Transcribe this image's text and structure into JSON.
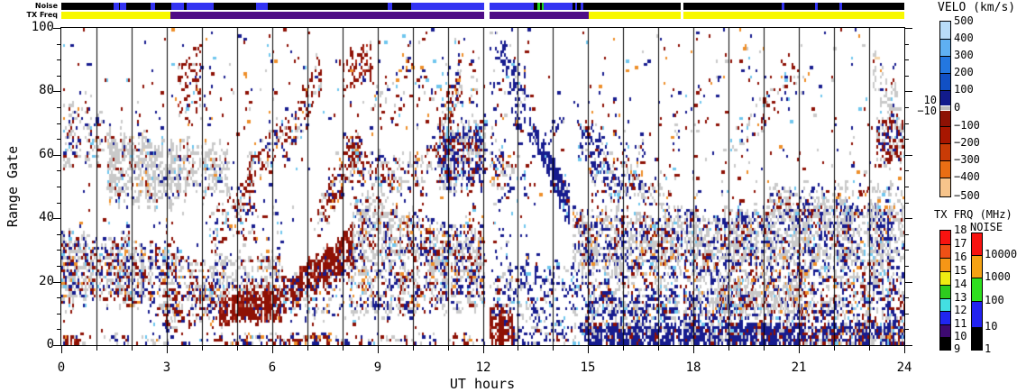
{
  "strips": {
    "noise_label": "Noise",
    "tx_label": "TX Freq",
    "colors": {
      "black": "#000000",
      "blue": "#3333f2",
      "green": "#1ed31e",
      "yellow": "#f8f800",
      "purple": "#4f0d86"
    },
    "noise_segments": [
      [
        0,
        1.5,
        "black"
      ],
      [
        1.5,
        1.63,
        "blue"
      ],
      [
        1.63,
        1.68,
        "black"
      ],
      [
        1.68,
        1.86,
        "blue"
      ],
      [
        1.86,
        2.55,
        "black"
      ],
      [
        2.55,
        2.66,
        "blue"
      ],
      [
        2.66,
        3.12,
        "black"
      ],
      [
        3.12,
        3.5,
        "blue"
      ],
      [
        3.5,
        3.58,
        "black"
      ],
      [
        3.58,
        4.33,
        "blue"
      ],
      [
        4.33,
        5.55,
        "black"
      ],
      [
        5.55,
        5.88,
        "blue"
      ],
      [
        5.88,
        9.28,
        "black"
      ],
      [
        9.28,
        9.43,
        "blue"
      ],
      [
        9.43,
        9.95,
        "black"
      ],
      [
        9.95,
        12.04,
        "blue"
      ],
      [
        12.19,
        13.45,
        "blue"
      ],
      [
        13.45,
        13.56,
        "black"
      ],
      [
        13.56,
        13.63,
        "green"
      ],
      [
        13.63,
        13.67,
        "black"
      ],
      [
        13.67,
        13.73,
        "green"
      ],
      [
        13.73,
        14.55,
        "blue"
      ],
      [
        14.55,
        14.62,
        "black"
      ],
      [
        14.62,
        14.68,
        "blue"
      ],
      [
        14.68,
        14.79,
        "black"
      ],
      [
        14.79,
        14.85,
        "blue"
      ],
      [
        14.85,
        17.64,
        "black"
      ],
      [
        17.7,
        20.5,
        "black"
      ],
      [
        20.5,
        20.58,
        "blue"
      ],
      [
        20.58,
        21.45,
        "black"
      ],
      [
        21.45,
        21.53,
        "blue"
      ],
      [
        21.53,
        22.15,
        "black"
      ],
      [
        22.15,
        22.23,
        "blue"
      ],
      [
        22.23,
        24,
        "black"
      ]
    ],
    "tx_segments": [
      [
        0,
        3.1,
        "yellow"
      ],
      [
        3.1,
        12.04,
        "purple"
      ],
      [
        12.19,
        15.02,
        "purple"
      ],
      [
        15.02,
        17.64,
        "yellow"
      ],
      [
        17.7,
        24,
        "yellow"
      ]
    ]
  },
  "chart_data": {
    "type": "heatmap",
    "xlabel": "UT hours",
    "ylabel": "Range Gate",
    "x_range": [
      0,
      24
    ],
    "y_range": [
      0,
      100
    ],
    "x_tick_labels": [
      "0",
      "3",
      "6",
      "9",
      "12",
      "15",
      "18",
      "21",
      "24"
    ],
    "y_tick_labels": [
      "0",
      "20",
      "40",
      "60",
      "80",
      "100"
    ],
    "data_gaps_hours": [
      [
        12.04,
        12.19
      ],
      [
        17.64,
        17.7
      ]
    ],
    "cell_colors": {
      "gray": "#c9c9c9",
      "navy": "#171c8f",
      "red": "#8e1105",
      "red2": "#b43220",
      "cyan": "#6fc6ee",
      "lblue": "#a8d8f2",
      "orange": "#ee8f2a",
      "peach": "#f5d5a8"
    },
    "palettes": {
      "gs": [
        [
          "gray",
          0.8
        ],
        [
          "navy",
          0.06
        ],
        [
          "red",
          0.06
        ],
        [
          "cyan",
          0.03
        ],
        [
          "orange",
          0.03
        ],
        [
          "peach",
          0.02
        ]
      ],
      "gs2": [
        [
          "gray",
          0.62
        ],
        [
          "navy",
          0.16
        ],
        [
          "red",
          0.14
        ],
        [
          "cyan",
          0.04
        ],
        [
          "orange",
          0.04
        ]
      ],
      "gsmix": [
        [
          "gray",
          0.5
        ],
        [
          "navy",
          0.23
        ],
        [
          "red",
          0.18
        ],
        [
          "cyan",
          0.04
        ],
        [
          "orange",
          0.05
        ]
      ],
      "gsnavy": [
        [
          "gray",
          0.56
        ],
        [
          "navy",
          0.27
        ],
        [
          "red",
          0.11
        ],
        [
          "cyan",
          0.03
        ],
        [
          "orange",
          0.03
        ]
      ],
      "mix": [
        [
          "gray",
          0.32
        ],
        [
          "navy",
          0.32
        ],
        [
          "red",
          0.26
        ],
        [
          "cyan",
          0.05
        ],
        [
          "orange",
          0.05
        ]
      ],
      "mix2": [
        [
          "gray",
          0.4
        ],
        [
          "navy",
          0.34
        ],
        [
          "red",
          0.16
        ],
        [
          "cyan",
          0.05
        ],
        [
          "orange",
          0.05
        ]
      ],
      "mixdense": [
        [
          "navy",
          0.5
        ],
        [
          "red",
          0.25
        ],
        [
          "gray",
          0.17
        ],
        [
          "orange",
          0.04
        ],
        [
          "cyan",
          0.04
        ]
      ],
      "red": [
        [
          "red",
          0.8
        ],
        [
          "red2",
          0.07
        ],
        [
          "gray",
          0.08
        ],
        [
          "navy",
          0.05
        ]
      ],
      "redmix": [
        [
          "red",
          0.52
        ],
        [
          "gray",
          0.26
        ],
        [
          "navy",
          0.12
        ],
        [
          "orange",
          0.05
        ],
        [
          "cyan",
          0.05
        ]
      ],
      "redmix2": [
        [
          "red",
          0.48
        ],
        [
          "navy",
          0.22
        ],
        [
          "gray",
          0.22
        ],
        [
          "orange",
          0.08
        ]
      ],
      "redmix3": [
        [
          "red",
          0.44
        ],
        [
          "gray",
          0.3
        ],
        [
          "navy",
          0.2
        ],
        [
          "cyan",
          0.06
        ]
      ],
      "navy": [
        [
          "navy",
          0.86
        ],
        [
          "gray",
          0.06
        ],
        [
          "red",
          0.04
        ],
        [
          "cyan",
          0.04
        ]
      ],
      "navyband": [
        [
          "navy",
          0.78
        ],
        [
          "red",
          0.1
        ],
        [
          "gray",
          0.12
        ]
      ],
      "bluemix": [
        [
          "navy",
          0.56
        ],
        [
          "gray",
          0.26
        ],
        [
          "red",
          0.1
        ],
        [
          "cyan",
          0.08
        ]
      ],
      "bluemix2": [
        [
          "navy",
          0.4
        ],
        [
          "gray",
          0.3
        ],
        [
          "red",
          0.2
        ],
        [
          "cyan",
          0.1
        ]
      ],
      "sparse": [
        [
          "navy",
          0.32
        ],
        [
          "red",
          0.32
        ],
        [
          "gray",
          0.16
        ],
        [
          "orange",
          0.1
        ],
        [
          "cyan",
          0.1
        ]
      ],
      "sparse2": [
        [
          "navy",
          0.5
        ],
        [
          "red",
          0.22
        ],
        [
          "gray",
          0.12
        ],
        [
          "cyan",
          0.08
        ],
        [
          "orange",
          0.08
        ]
      ]
    },
    "clusters_format": "[hour_start, hour_end, gate_low_at_start, gate_high_at_start, gate_low_at_end, gate_high_at_end, density, palette]",
    "clusters": [
      [
        0.05,
        0.55,
        0,
        2.5,
        0,
        2.5,
        0.9,
        "red"
      ],
      [
        0.05,
        1.15,
        55,
        75,
        57,
        74,
        0.3,
        "gsmix"
      ],
      [
        0.0,
        2.35,
        15,
        34,
        14,
        32,
        0.6,
        "gsmix"
      ],
      [
        2.3,
        4.6,
        13,
        30,
        11,
        26,
        0.35,
        "gsmix"
      ],
      [
        1.3,
        3.35,
        46,
        67,
        45,
        61,
        0.55,
        "gs"
      ],
      [
        3.35,
        4.7,
        49,
        64,
        48,
        62,
        0.5,
        "gs"
      ],
      [
        2.35,
        3.35,
        5,
        36,
        5,
        36,
        0.1,
        "sparse2"
      ],
      [
        3.3,
        3.95,
        70,
        90,
        75,
        93,
        0.25,
        "red"
      ],
      [
        4.5,
        6.2,
        7,
        16,
        9,
        18,
        0.78,
        "red"
      ],
      [
        6.2,
        8.3,
        9,
        18,
        27,
        37,
        0.78,
        "red"
      ],
      [
        4.2,
        5.4,
        28,
        40,
        42,
        54,
        0.26,
        "redmix"
      ],
      [
        5.3,
        6.4,
        48,
        60,
        63,
        74,
        0.3,
        "redmix"
      ],
      [
        6.3,
        7.4,
        56,
        66,
        80,
        92,
        0.32,
        "redmix"
      ],
      [
        7.3,
        8.45,
        35,
        45,
        57,
        68,
        0.4,
        "redmix"
      ],
      [
        7.9,
        8.8,
        79,
        89,
        85,
        96,
        0.3,
        "red"
      ],
      [
        8.8,
        9.8,
        72,
        84,
        74,
        84,
        0.12,
        "redmix"
      ],
      [
        4.5,
        6.2,
        16,
        27,
        18,
        28,
        0.42,
        "gs2"
      ],
      [
        6.0,
        8.2,
        9,
        24,
        10,
        25,
        0.22,
        "mix"
      ],
      [
        8.2,
        9.7,
        9,
        30,
        10,
        30,
        0.4,
        "gsmix"
      ],
      [
        8.3,
        10.0,
        28,
        44,
        28,
        42,
        0.45,
        "gs2"
      ],
      [
        8.45,
        9.3,
        33,
        47,
        36,
        48,
        0.3,
        "gs2"
      ],
      [
        9.6,
        12.04,
        11,
        32,
        13,
        34,
        0.45,
        "gsmix"
      ],
      [
        10.0,
        11.6,
        26,
        40,
        26,
        40,
        0.25,
        "mix"
      ],
      [
        8.0,
        9.4,
        55,
        66,
        48,
        58,
        0.35,
        "redmix"
      ],
      [
        9.4,
        10.3,
        48,
        58,
        50,
        60,
        0.3,
        "gsmix"
      ],
      [
        10.7,
        12.04,
        50,
        68,
        52,
        70,
        0.55,
        "bluemix2"
      ],
      [
        10.25,
        11.4,
        50,
        58,
        80,
        92,
        0.3,
        "redmix"
      ],
      [
        9.6,
        11.4,
        76,
        96,
        76,
        96,
        0.07,
        "sparse"
      ],
      [
        11.4,
        12.04,
        30,
        95,
        30,
        95,
        0.05,
        "sparse"
      ],
      [
        12.19,
        12.85,
        0.5,
        12,
        1,
        10,
        0.82,
        "red"
      ],
      [
        12.2,
        12.85,
        50,
        62,
        48,
        58,
        0.3,
        "gsmix"
      ],
      [
        12.19,
        13.35,
        55,
        100,
        55,
        100,
        0.08,
        "sparse2"
      ],
      [
        12.5,
        13.2,
        88,
        97,
        72,
        80,
        0.35,
        "navy"
      ],
      [
        12.9,
        13.5,
        70,
        76,
        63,
        68,
        0.4,
        "navy"
      ],
      [
        13.5,
        14.45,
        63,
        68,
        37,
        49,
        0.8,
        "navy"
      ],
      [
        13.2,
        14.6,
        55,
        60,
        72,
        79,
        0.13,
        "navy"
      ],
      [
        14.55,
        19.2,
        25,
        41,
        25,
        41,
        0.58,
        "gsnavy"
      ],
      [
        14.9,
        21.3,
        0,
        6,
        0,
        6,
        0.82,
        "navyband"
      ],
      [
        12.2,
        15.0,
        7,
        26,
        7,
        26,
        0.22,
        "bluemix"
      ],
      [
        15.0,
        24.0,
        6,
        26,
        6,
        25,
        0.4,
        "mix2"
      ],
      [
        19.2,
        24.0,
        26,
        43,
        26,
        43,
        0.58,
        "gsnavy"
      ],
      [
        21.3,
        24.0,
        0,
        6,
        0,
        6,
        0.8,
        "mixdense"
      ],
      [
        15.0,
        19.6,
        8,
        16,
        8,
        16,
        0.3,
        "bluemix"
      ],
      [
        18.6,
        21.2,
        10,
        21,
        10,
        21,
        0.35,
        "gs2"
      ],
      [
        15.0,
        16.6,
        45,
        75,
        45,
        60,
        0.1,
        "sparse2"
      ],
      [
        14.7,
        15.9,
        58,
        72,
        44,
        56,
        0.3,
        "bluemix"
      ],
      [
        15.9,
        17.3,
        50,
        58,
        40,
        48,
        0.3,
        "gs2"
      ],
      [
        17.4,
        18.2,
        66,
        76,
        66,
        76,
        0.08,
        "sparse"
      ],
      [
        18.8,
        21.0,
        56,
        64,
        80,
        90,
        0.15,
        "redmix"
      ],
      [
        20.0,
        24.0,
        40,
        50,
        40,
        50,
        0.3,
        "gs2"
      ],
      [
        23.2,
        24.0,
        58,
        72,
        58,
        72,
        0.5,
        "redmix3"
      ],
      [
        23.1,
        23.9,
        80,
        92,
        66,
        78,
        0.35,
        "gs"
      ],
      [
        12.2,
        13.35,
        25,
        55,
        25,
        55,
        0.06,
        "sparse2"
      ],
      [
        12.85,
        14.9,
        0,
        7,
        0,
        7,
        0.25,
        "bluemix"
      ],
      [
        0.5,
        4.5,
        0,
        3,
        0,
        3,
        0.15,
        "mix"
      ],
      [
        4.5,
        6.2,
        0,
        3,
        0,
        3,
        0.35,
        "mix"
      ],
      [
        6.2,
        7.6,
        0,
        3,
        0,
        3,
        0.45,
        "redmix2"
      ],
      [
        7.6,
        12.04,
        0,
        3,
        0,
        3,
        0.2,
        "mix"
      ],
      [
        2.9,
        4.4,
        6,
        18,
        8,
        20,
        0.35,
        "redmix2"
      ],
      [
        5.0,
        6.3,
        28,
        45,
        28,
        45,
        0.07,
        "sparse"
      ],
      [
        0,
        12.04,
        40,
        100,
        40,
        100,
        0.012,
        "sparse"
      ],
      [
        15,
        24,
        44,
        100,
        44,
        100,
        0.02,
        "sparse"
      ],
      [
        0,
        24,
        0,
        100,
        0,
        100,
        0.007,
        "sparse"
      ]
    ],
    "colorbars": {
      "velo": {
        "title": "VELO (km/s)",
        "segments": [
          [
            19,
            "#b9ddf8"
          ],
          [
            19,
            "#5fb0f2"
          ],
          [
            19,
            "#2377e0"
          ],
          [
            19,
            "#1150c4"
          ],
          [
            17,
            "#121b8c"
          ],
          [
            1,
            "#ffffff"
          ],
          [
            4,
            "#bdbdbd"
          ],
          [
            1,
            "#ffffff"
          ],
          [
            17,
            "#8e1104"
          ],
          [
            19,
            "#a81600"
          ],
          [
            19,
            "#c93b06"
          ],
          [
            19,
            "#e96e14"
          ],
          [
            21,
            "#f7c48b"
          ]
        ],
        "labels": [
          [
            "500",
            0
          ],
          [
            "400",
            19
          ],
          [
            "300",
            38
          ],
          [
            "200",
            57
          ],
          [
            "100",
            76
          ],
          [
            "0",
            96
          ],
          [
            "−100",
            116
          ],
          [
            "−200",
            135
          ],
          [
            "−300",
            154
          ],
          [
            "−400",
            173
          ],
          [
            "−500",
            194
          ]
        ],
        "left_labels": [
          [
            "10",
            88
          ],
          [
            "−10",
            100
          ]
        ]
      },
      "txfrq": {
        "title": "TX FRQ (MHz)",
        "segments": [
          [
            15,
            "#f81310"
          ],
          [
            15,
            "#ef5016"
          ],
          [
            15,
            "#f59616"
          ],
          [
            15,
            "#f0ec12"
          ],
          [
            15,
            "#2ecc1e"
          ],
          [
            14,
            "#43dfe2"
          ],
          [
            15,
            "#2026f0"
          ],
          [
            14,
            "#3d0a70"
          ],
          [
            14,
            "#000000"
          ]
        ],
        "labels": [
          [
            "18",
            0
          ],
          [
            "17",
            15
          ],
          [
            "16",
            30
          ],
          [
            "15",
            45
          ],
          [
            "14",
            60
          ],
          [
            "13",
            75
          ],
          [
            "12",
            89
          ],
          [
            "11",
            104
          ],
          [
            "10",
            118
          ],
          [
            "9",
            132
          ]
        ]
      },
      "noise": {
        "title": "NOISE",
        "segments": [
          [
            24,
            "#f81310"
          ],
          [
            25,
            "#f5a214"
          ],
          [
            26,
            "#2ee01e"
          ],
          [
            29,
            "#2222f0"
          ],
          [
            25,
            "#000000"
          ]
        ],
        "labels": [
          [
            "10000",
            24
          ],
          [
            "1000",
            49
          ],
          [
            "100",
            75
          ],
          [
            "10",
            104
          ],
          [
            "1",
            129
          ]
        ]
      }
    }
  }
}
